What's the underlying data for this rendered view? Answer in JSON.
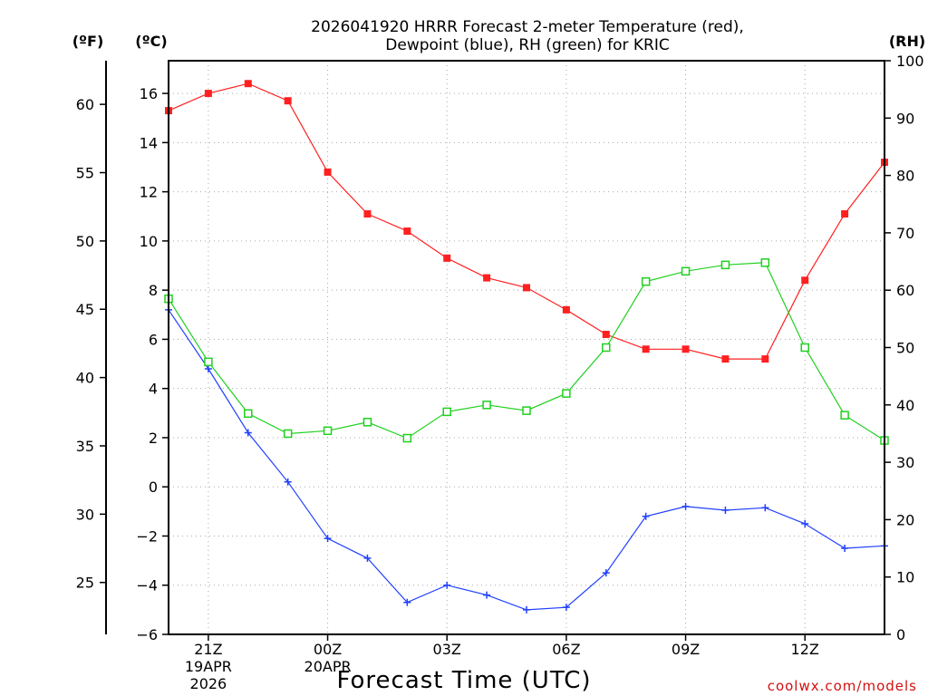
{
  "chart_data": {
    "type": "line",
    "title_line1": "2026041920 HRRR Forecast 2-meter Temperature (red),",
    "title_line2": "Dewpoint (blue), RH (green) for KRIC",
    "units": {
      "fahrenheit": "(ºF)",
      "celsius": "(ºC)",
      "rh": "(RH)"
    },
    "xlabel": "Forecast Time (UTC)",
    "credit": "coolwx.com/models",
    "x_hours": [
      20,
      21,
      22,
      23,
      24,
      25,
      26,
      27,
      28,
      29,
      30,
      31,
      32,
      33,
      34,
      35,
      36,
      37,
      38
    ],
    "x_ticks": [
      {
        "hour": 21,
        "label": "21Z",
        "date1": "19APR",
        "date2": "2026"
      },
      {
        "hour": 24,
        "label": "00Z",
        "date1": "20APR",
        "date2": ""
      },
      {
        "hour": 27,
        "label": "03Z",
        "date1": "",
        "date2": ""
      },
      {
        "hour": 30,
        "label": "06Z",
        "date1": "",
        "date2": ""
      },
      {
        "hour": 33,
        "label": "09Z",
        "date1": "",
        "date2": ""
      },
      {
        "hour": 36,
        "label": "12Z",
        "date1": "",
        "date2": ""
      }
    ],
    "xlim": [
      20,
      38
    ],
    "celsius_axis": {
      "range": [
        -6,
        17.33
      ],
      "ticks": [
        "16",
        "14",
        "12",
        "10",
        "8",
        "6",
        "4",
        "2",
        "0",
        "−2",
        "−4",
        "−6"
      ],
      "tick_values": [
        16,
        14,
        12,
        10,
        8,
        6,
        4,
        2,
        0,
        -2,
        -4,
        -6
      ]
    },
    "fahrenheit_axis": {
      "ticks": [
        "60",
        "55",
        "50",
        "45",
        "40",
        "35",
        "30",
        "25"
      ],
      "tick_values": [
        60,
        55,
        50,
        45,
        40,
        35,
        30,
        25
      ]
    },
    "rh_axis": {
      "range": [
        0,
        100
      ],
      "ticks": [
        "100",
        "90",
        "80",
        "70",
        "60",
        "50",
        "40",
        "30",
        "20",
        "10",
        "0"
      ],
      "tick_values": [
        100,
        90,
        80,
        70,
        60,
        50,
        40,
        30,
        20,
        10,
        0
      ]
    },
    "series": [
      {
        "name": "2-meter Temperature",
        "axis": "celsius",
        "color": "#ff2020",
        "marker": "filled-square",
        "values": [
          15.3,
          16.0,
          16.4,
          15.7,
          12.8,
          11.1,
          10.4,
          9.3,
          8.5,
          8.1,
          7.2,
          6.2,
          5.6,
          5.6,
          5.2,
          5.2,
          8.4,
          11.1,
          13.2
        ]
      },
      {
        "name": "Dewpoint",
        "axis": "celsius",
        "color": "#2040ff",
        "marker": "plus",
        "values": [
          7.2,
          4.8,
          2.2,
          0.2,
          -2.1,
          -2.9,
          -4.7,
          -4.0,
          -4.4,
          -5.0,
          -4.9,
          -3.5,
          -1.2,
          -0.8,
          -0.95,
          -0.85,
          -1.5,
          -2.5,
          -2.4
        ]
      },
      {
        "name": "RH",
        "axis": "rh",
        "color": "#20d020",
        "marker": "open-square",
        "values": [
          58.5,
          47.5,
          38.5,
          35.0,
          35.5,
          37.0,
          34.2,
          38.8,
          40.0,
          39.0,
          42.0,
          50.0,
          61.5,
          63.3,
          64.4,
          64.8,
          50.0,
          38.2,
          33.8
        ]
      }
    ]
  }
}
